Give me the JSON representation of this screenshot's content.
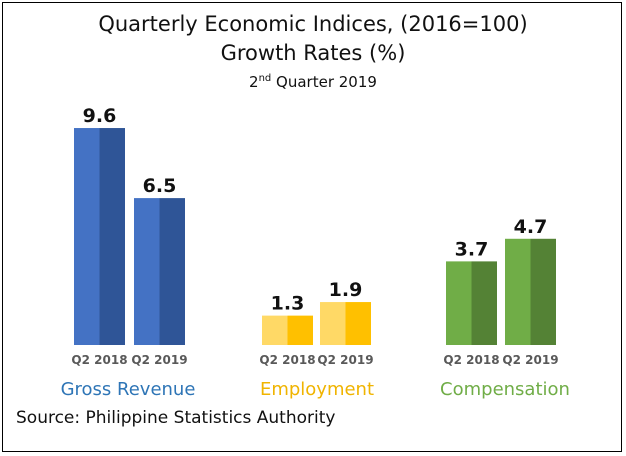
{
  "chart_data": {
    "type": "bar",
    "title": "Quarterly Economic Indices, (2016=100)",
    "subtitle": "Growth Rates (%)",
    "period": {
      "ordinal": "2",
      "suffix": "nd",
      "rest": " Quarter 2019"
    },
    "source": "Source: Philippine Statistics Authority",
    "series_labels": [
      "Q2 2018",
      "Q2 2019"
    ],
    "groups": [
      {
        "name": "Gross Revenue",
        "values": [
          9.6,
          6.5
        ],
        "value_labels": [
          "9.6",
          "6.5"
        ],
        "colors": {
          "light": "#4472C4",
          "dark": "#2F5597",
          "label": "#2E75B6"
        }
      },
      {
        "name": "Employment",
        "values": [
          1.3,
          1.9
        ],
        "value_labels": [
          "1.3",
          "1.9"
        ],
        "colors": {
          "light": "#FFD966",
          "dark": "#FFC000",
          "label": "#F0B400"
        }
      },
      {
        "name": "Compensation",
        "values": [
          3.7,
          4.7
        ],
        "value_labels": [
          "3.7",
          "4.7"
        ],
        "colors": {
          "light": "#70AD47",
          "dark": "#548235",
          "label": "#70AD47"
        }
      }
    ],
    "ylim": [
      0,
      10
    ],
    "grid": false
  }
}
